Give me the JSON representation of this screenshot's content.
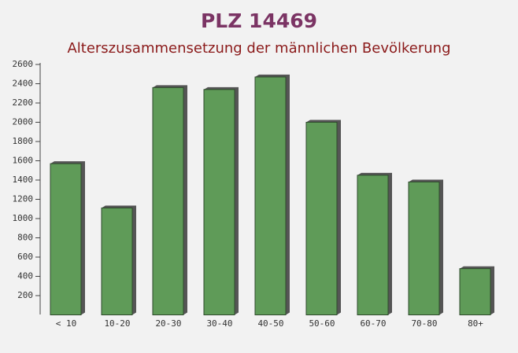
{
  "chart_data": {
    "type": "bar",
    "title": "PLZ 14469",
    "subtitle": "Alterszusammensetzung der männlichen Bevölkerung",
    "categories": [
      "< 10",
      "10-20",
      "20-30",
      "30-40",
      "40-50",
      "50-60",
      "60-70",
      "70-80",
      "80+"
    ],
    "values": [
      1570,
      1110,
      2360,
      2340,
      2470,
      2000,
      1450,
      1380,
      480
    ],
    "color": "#5f9b58",
    "ylim": [
      0,
      2600
    ],
    "yticks": [
      200,
      400,
      600,
      800,
      1000,
      1200,
      1400,
      1600,
      1800,
      2000,
      2200,
      2400,
      2600
    ],
    "grid": false
  }
}
